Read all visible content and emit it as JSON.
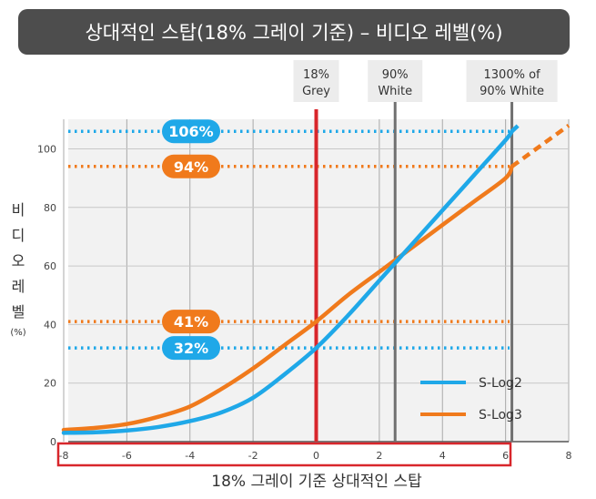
{
  "title": "상대적인 스탑(18% 그레이 기준) – 비디오 레벨(%)",
  "colors": {
    "slog2": "#1fa8e8",
    "slog3": "#f07a1c",
    "grey_line": "#d8262b",
    "ref_lines": "#707070",
    "title_bg": "#4d4d4d",
    "plot_bg": "#f2f2f2"
  },
  "top_labels": [
    {
      "line1": "18%",
      "line2": "Grey"
    },
    {
      "line1": "90%",
      "line2": "White"
    },
    {
      "line1": "1300% of",
      "line2": "90% White"
    }
  ],
  "badges": [
    {
      "text": "106%",
      "series": "slog2"
    },
    {
      "text": "94%",
      "series": "slog3"
    },
    {
      "text": "41%",
      "series": "slog3"
    },
    {
      "text": "32%",
      "series": "slog2"
    }
  ],
  "legend": [
    {
      "label": "S-Log2",
      "color": "#1fa8e8"
    },
    {
      "label": "S-Log3",
      "color": "#f07a1c"
    }
  ],
  "ylabel_chars": [
    "비",
    "디",
    "오",
    "레",
    "벨"
  ],
  "ylabel_unit": "(%)",
  "xlabel": "18% 그레이 기준 상대적인 스탑",
  "chart_data": {
    "type": "line",
    "title": "상대적인 스탑(18% 그레이 기준) – 비디오 레벨(%)",
    "xlabel": "18% 그레이 기준 상대적인 스탑",
    "ylabel": "비디오 레벨 (%)",
    "xlim": [
      -8,
      8
    ],
    "ylim": [
      0,
      110
    ],
    "xticks": [
      -8,
      -6,
      -4,
      -2,
      0,
      2,
      4,
      6,
      8
    ],
    "yticks": [
      0,
      20,
      40,
      60,
      80,
      100
    ],
    "grid": true,
    "legend_position": "bottom-right",
    "reference_lines_x": [
      {
        "x": 0,
        "label": "18% Grey",
        "color": "#d8262b"
      },
      {
        "x": 2.5,
        "label": "90% White",
        "color": "#707070"
      },
      {
        "x": 6.2,
        "label": "1300% of 90% White",
        "color": "#707070"
      }
    ],
    "reference_lines_y": [
      {
        "y": 106,
        "label": "106%",
        "color": "#1fa8e8"
      },
      {
        "y": 94,
        "label": "94%",
        "color": "#f07a1c"
      },
      {
        "y": 41,
        "label": "41%",
        "color": "#f07a1c"
      },
      {
        "y": 32,
        "label": "32%",
        "color": "#1fa8e8"
      }
    ],
    "series": [
      {
        "name": "S-Log2",
        "color": "#1fa8e8",
        "x": [
          -8,
          -7,
          -6,
          -5,
          -4,
          -3,
          -2,
          -1,
          0,
          1,
          2,
          3,
          4,
          5,
          6,
          6.2
        ],
        "y": [
          3,
          3.2,
          3.8,
          5,
          7,
          10,
          15,
          23,
          32,
          43,
          55,
          67,
          79,
          91,
          103,
          106
        ]
      },
      {
        "name": "S-Log3",
        "color": "#f07a1c",
        "x": [
          -8,
          -7,
          -6,
          -5,
          -4,
          -3,
          -2,
          -1,
          0,
          1,
          2,
          3,
          4,
          5,
          6,
          6.2
        ],
        "y": [
          4,
          4.7,
          6,
          8.5,
          12,
          18,
          25,
          33,
          41,
          50,
          58,
          66,
          74,
          82,
          90,
          94
        ]
      }
    ],
    "extrapolated_series": [
      {
        "name": "S-Log2",
        "x": [
          6.2,
          6.5
        ],
        "y": [
          106,
          109
        ]
      },
      {
        "name": "S-Log3",
        "x": [
          6.2,
          8
        ],
        "y": [
          94,
          108
        ]
      }
    ]
  }
}
